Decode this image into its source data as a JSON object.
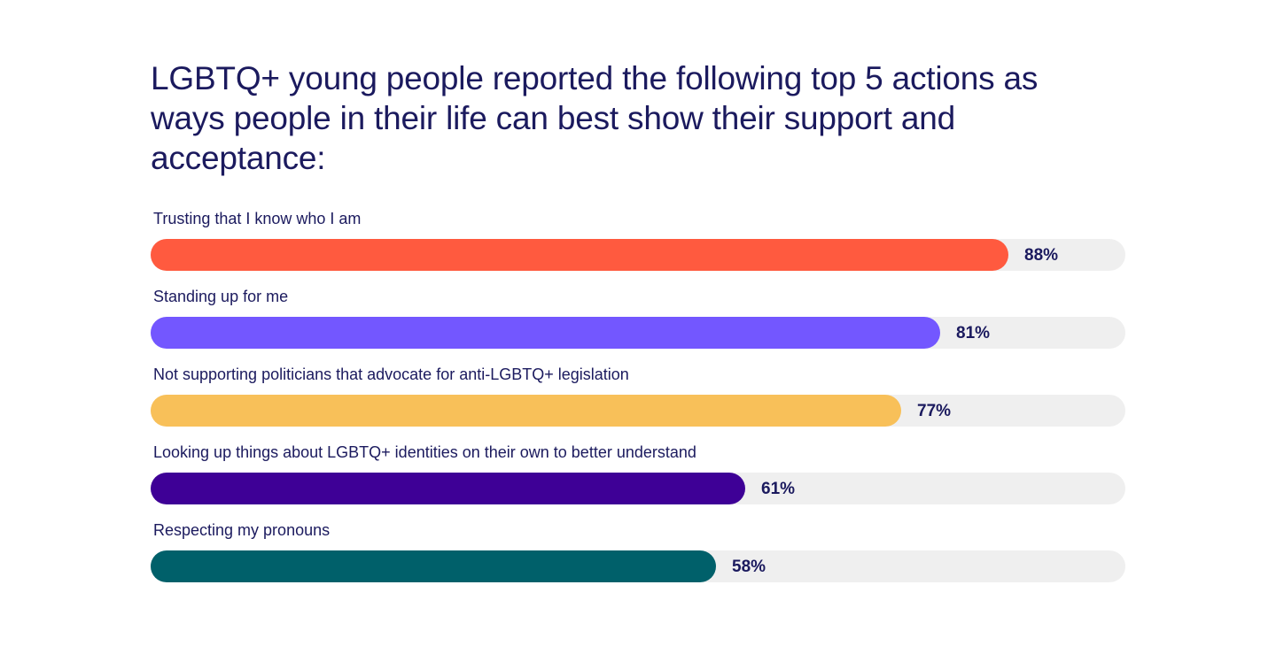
{
  "chart_data": {
    "type": "bar",
    "orientation": "horizontal",
    "title": "LGBTQ+ young people reported the following top 5 actions as ways people in their life can best show their support and acceptance:",
    "xlim": [
      0,
      100
    ],
    "grid": false,
    "unit": "%",
    "track_color": "#efefef",
    "bars": [
      {
        "label": "Trusting that I know who I am",
        "value": 88,
        "value_label": "88%",
        "color": "#ff5a3f"
      },
      {
        "label": "Standing up for me",
        "value": 81,
        "value_label": "81%",
        "color": "#7357ff"
      },
      {
        "label": "Not supporting politicians that advocate for anti-LGBTQ+ legislation",
        "value": 77,
        "value_label": "77%",
        "color": "#f8c059"
      },
      {
        "label": "Looking up things about LGBTQ+ identities on their own to better understand",
        "value": 61,
        "value_label": "61%",
        "color": "#3e0096"
      },
      {
        "label": "Respecting my pronouns",
        "value": 58,
        "value_label": "58%",
        "color": "#00606a"
      }
    ]
  }
}
